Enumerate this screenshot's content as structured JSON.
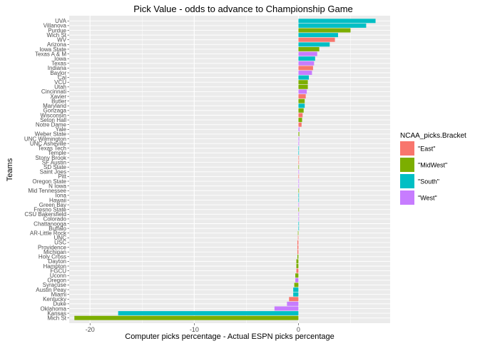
{
  "chart_data": {
    "type": "bar",
    "orientation": "horizontal",
    "title": "Pick Value - odds to advance to Championship Game",
    "xlabel": "Computer picks percentage - Actual ESPN picks percentage",
    "ylabel": "Teams",
    "xlim": [
      -22.0,
      8.8
    ],
    "x_ticks": [
      -20,
      -10,
      0
    ],
    "grid": true,
    "legend": {
      "title": "NCAA_picks.Bracket",
      "position": "right",
      "entries": [
        "\"East\"",
        "\"MidWest\"",
        "\"South\"",
        "\"West\""
      ]
    },
    "colors": {
      "\"East\"": "#F8766D",
      "\"MidWest\"": "#7CAE00",
      "\"South\"": "#00BFC4",
      "\"West\"": "#C77CFF"
    },
    "categories": [
      "UVA",
      "Villanova",
      "Purdue",
      "Wich St",
      "WV",
      "Arizona",
      "Iowa State",
      "Texas A & M",
      "Iowa",
      "Texas",
      "Indiana",
      "Baylor",
      "Cal",
      "VCU",
      "Utah",
      "Cincinnati",
      "Xavier",
      "Butler",
      "Maryland",
      "Gonzaga",
      "Wisconsin",
      "Seton Hall",
      "Notre Dame",
      "Yale",
      "Weber State",
      "UNC Wilmington",
      "UNC Asheville",
      "Texas Tech",
      "Temple",
      "Stony Brook",
      "SF Austin",
      "SD State",
      "Saint Joes",
      "Pitt",
      "Oregon State",
      "N Iowa",
      "Mid Tennessee",
      "Iona",
      "Hawaii",
      "Green Bay",
      "Fresno State",
      "CSU Bakersfield",
      "Colorado",
      "Chattanooga",
      "Buffalo",
      "AR-Little Rock",
      "UNC",
      "USC",
      "Providence",
      "Michigan",
      "Holy Cross",
      "Dayton",
      "Hampton",
      "FGCU",
      "Uconn",
      "Oregon",
      "Syracuse",
      "Austin Peay",
      "Miami",
      "Kentucky",
      "Duke",
      "Oklahoma",
      "Kansas",
      "Mich St"
    ],
    "values": [
      7.4,
      6.5,
      5.0,
      3.8,
      3.5,
      3.0,
      2.0,
      1.8,
      1.6,
      1.5,
      1.4,
      1.3,
      1.0,
      0.9,
      0.9,
      0.8,
      0.7,
      0.6,
      0.6,
      0.5,
      0.4,
      0.35,
      0.3,
      0.1,
      0.08,
      0.07,
      0.06,
      0.05,
      0.05,
      0.05,
      0.05,
      0.05,
      0.05,
      0.05,
      0.05,
      0.05,
      0.05,
      0.05,
      0.05,
      0.05,
      0.05,
      0.05,
      0.05,
      0.05,
      0.05,
      -0.05,
      -0.05,
      -0.1,
      -0.1,
      -0.1,
      -0.1,
      -0.2,
      -0.2,
      -0.2,
      -0.3,
      -0.3,
      -0.4,
      -0.5,
      -0.5,
      -0.9,
      -1.1,
      -2.3,
      -17.3,
      -21.5
    ],
    "brackets": [
      "\"South\"",
      "\"South\"",
      "\"MidWest\"",
      "\"South\"",
      "\"East\"",
      "\"South\"",
      "\"MidWest\"",
      "\"West\"",
      "\"South\"",
      "\"West\"",
      "\"East\"",
      "\"West\"",
      "\"South\"",
      "\"MidWest\"",
      "\"MidWest\"",
      "\"West\"",
      "\"East\"",
      "\"MidWest\"",
      "\"South\"",
      "\"MidWest\"",
      "\"East\"",
      "\"MidWest\"",
      "\"East\"",
      "\"West\"",
      "\"MidWest\"",
      "\"West\"",
      "\"West\"",
      "\"South\"",
      "\"South\"",
      "\"East\"",
      "\"East\"",
      "\"MidWest\"",
      "\"West\"",
      "\"East\"",
      "\"West\"",
      "\"West\"",
      "\"MidWest\"",
      "\"South\"",
      "\"South\"",
      "\"West\"",
      "\"MidWest\"",
      "\"West\"",
      "\"West\"",
      "\"South\"",
      "\"South\"",
      "\"MidWest\"",
      "\"East\"",
      "\"East\"",
      "\"East\"",
      "\"East\"",
      "\"MidWest\"",
      "\"MidWest\"",
      "\"MidWest\"",
      "\"East\"",
      "\"MidWest\"",
      "\"West\"",
      "\"MidWest\"",
      "\"South\"",
      "\"South\"",
      "\"East\"",
      "\"West\"",
      "\"West\"",
      "\"South\"",
      "\"MidWest\""
    ]
  }
}
